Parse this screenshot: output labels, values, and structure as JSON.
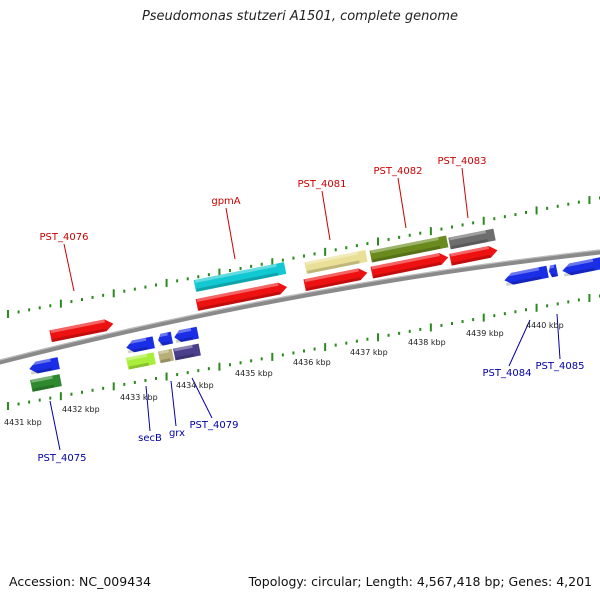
{
  "title": "Pseudomonas stutzeri A1501, complete genome",
  "footer": {
    "accession": "Accession: NC_009434",
    "summary": "Topology: circular; Length: 4,567,418 bp; Genes: 4,201"
  },
  "colors": {
    "backbone": "#8a8a8a",
    "tick": "#2a8a1e",
    "plus_label": "#cc0000",
    "minus_label": "#0000aa",
    "cds": "#ee1111",
    "cds_minus": "#1a2ee6",
    "feature_cyan": "#12c8d2",
    "feature_khaki": "#eadf96",
    "feature_olive": "#6b8a1e",
    "feature_gray": "#6d6d6d",
    "feature_green": "#2f8a2f",
    "feature_lime": "#a8ee3a",
    "feature_tan": "#b8ae78",
    "feature_slate": "#4a3f8a"
  },
  "scale_labels": [
    "4431 kbp",
    "4432 kbp",
    "4433 kbp",
    "4434 kbp",
    "4435 kbp",
    "4436 kbp",
    "4437 kbp",
    "4438 kbp",
    "4439 kbp",
    "4440 kbp"
  ],
  "genes_plus": [
    {
      "name": "PST_4076"
    },
    {
      "name": "gpmA"
    },
    {
      "name": "PST_4081"
    },
    {
      "name": "PST_4082"
    },
    {
      "name": "PST_4083"
    }
  ],
  "genes_minus": [
    {
      "name": "PST_4075"
    },
    {
      "name": "secB"
    },
    {
      "name": "grx"
    },
    {
      "name": "PST_4079"
    },
    {
      "name": "PST_4084"
    },
    {
      "name": "PST_4085"
    }
  ]
}
